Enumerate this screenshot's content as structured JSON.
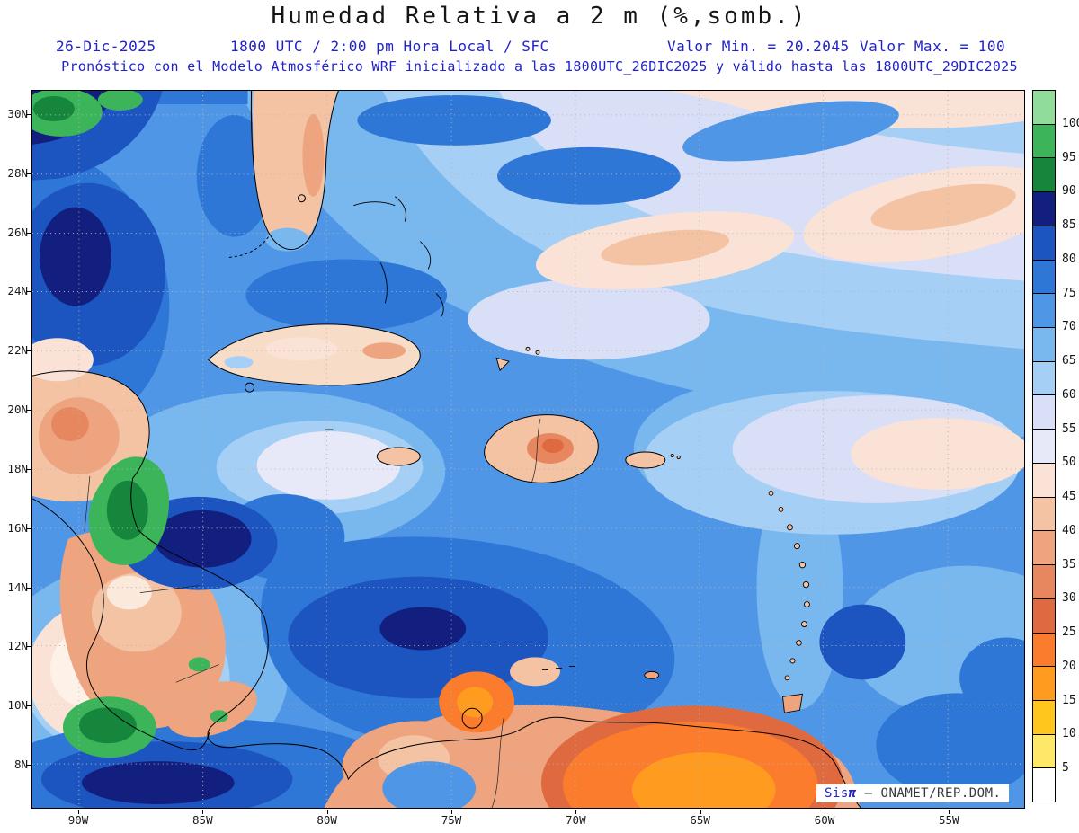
{
  "header": {
    "title": "Humedad Relativa a 2 m (%,somb.)",
    "run_date": "26-Dic-2025",
    "valid_time": "1800 UTC / 2:00 pm Hora Local / SFC",
    "value_min_label": "Valor Min. = 20.2045",
    "value_max_label": "Valor Max. = 100",
    "model_line": "Pronóstico con el Modelo Atmosférico WRF inicializado a las 1800UTC_26DIC2025 y válido hasta las 1800UTC_29DIC2025"
  },
  "watermark": {
    "sis": "Sis",
    "pi": "π",
    "rest": "– ONAMET/REP.DOM."
  },
  "colors": {
    "heading_blue": "#2121cd",
    "title_black": "#151515"
  },
  "chart_data": {
    "type": "heatmap",
    "title": "Humedad Relativa a 2 m (%,somb.)",
    "field": "Relative humidity at 2 m (%), shaded contour forecast over the Caribbean",
    "model": "WRF",
    "init_time": "1800UTC_26DIC2025",
    "valid_until": "1800UTC_29DIC2025",
    "run_date": "26-Dic-2025",
    "valid_label": "1800 UTC / 2:00 pm Hora Local / SFC",
    "value_min": 20.2045,
    "value_max": 100,
    "grid": true,
    "x_ticks": [
      "90W",
      "85W",
      "80W",
      "75W",
      "70W",
      "65W",
      "60W",
      "55W"
    ],
    "y_ticks": [
      "30N",
      "28N",
      "26N",
      "24N",
      "22N",
      "20N",
      "18N",
      "16N",
      "14N",
      "12N",
      "10N",
      "8N"
    ],
    "colorbar": {
      "position": "right",
      "units": "%",
      "tick_labels": [
        "100",
        "95",
        "90",
        "85",
        "80",
        "75",
        "70",
        "65",
        "60",
        "55",
        "50",
        "45",
        "40",
        "35",
        "30",
        "25",
        "20",
        "15",
        "10",
        "5"
      ],
      "colors_top_to_bottom": [
        "#8fdc9b",
        "#3cb45a",
        "#16863d",
        "#121f7e",
        "#1c54c0",
        "#2e77d6",
        "#4f97e6",
        "#79b7ef",
        "#a6cff5",
        "#d9dff6",
        "#e8e9f8",
        "#fae3d6",
        "#f4c3a4",
        "#eda47f",
        "#e6875f",
        "#e06a40",
        "#fb7c2d",
        "#ff9b1e",
        "#ffc61e",
        "#ffe868",
        "#ffffff"
      ]
    }
  }
}
